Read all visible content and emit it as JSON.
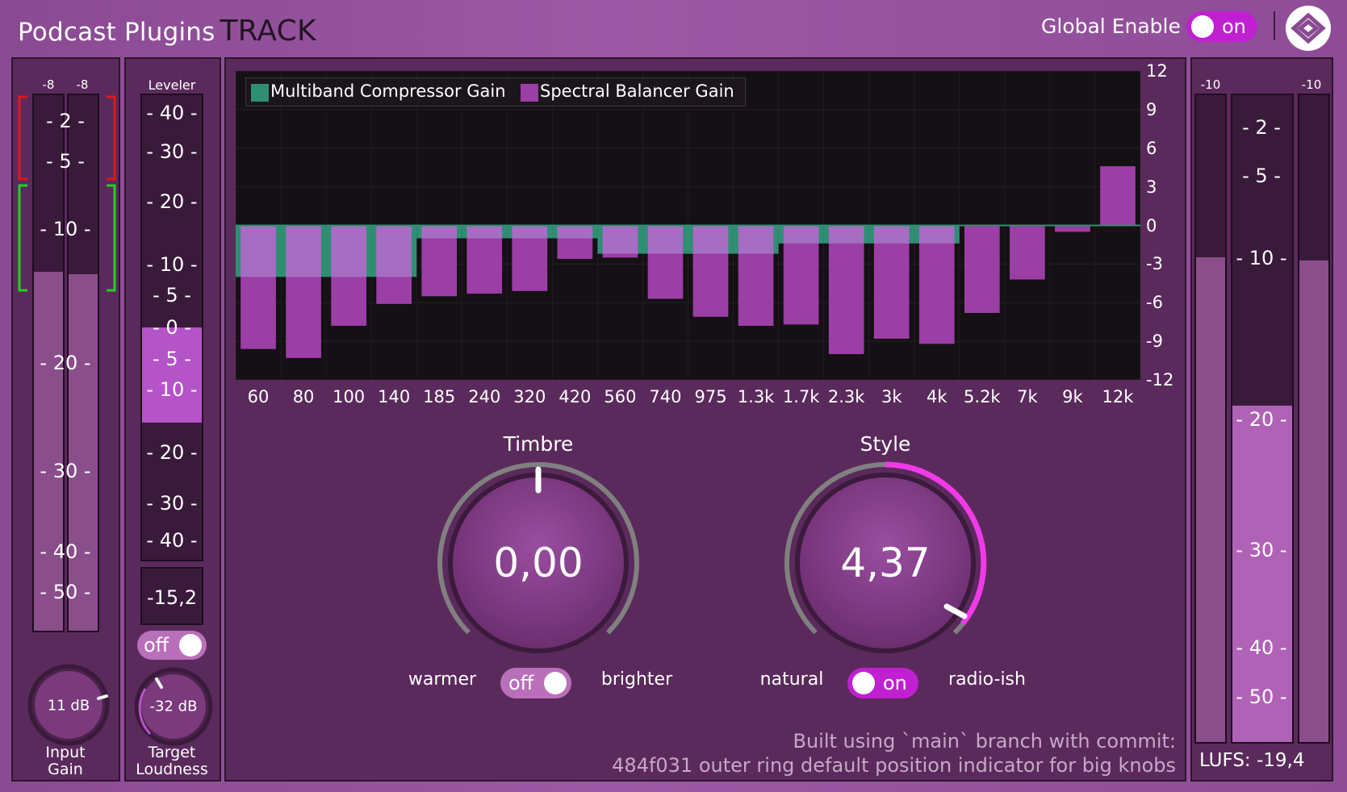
{
  "header": {
    "brand": "Podcast Plugins",
    "product": "TRACK",
    "global_enable_label": "Global Enable",
    "global_enable_state": "on"
  },
  "input_meter": {
    "peak_left": "-8",
    "peak_right": "-8",
    "scale": [
      "2",
      "5",
      "10",
      "20",
      "30",
      "40",
      "50"
    ],
    "knob_value": "11 dB",
    "knob_label_1": "Input",
    "knob_label_2": "Gain",
    "level_left": 0.67,
    "level_right": 0.665
  },
  "leveler": {
    "title": "Leveler",
    "scale_top": [
      "40",
      "30",
      "20",
      "10",
      "5"
    ],
    "zero": "0",
    "scale_bottom": [
      "5",
      "10",
      "20",
      "30",
      "40"
    ],
    "readout": "-15,2",
    "toggle_label": "off",
    "knob_value": "-32 dB",
    "knob_label_1": "Target",
    "knob_label_2": "Loudness"
  },
  "chart_data": {
    "type": "bar",
    "title": "",
    "legend": [
      "Multiband Compressor Gain",
      "Spectral Balancer Gain"
    ],
    "categories": [
      "60",
      "80",
      "100",
      "140",
      "185",
      "240",
      "320",
      "420",
      "560",
      "740",
      "975",
      "1.3k",
      "1.7k",
      "2.3k",
      "3k",
      "4k",
      "5.2k",
      "7k",
      "9k",
      "12k"
    ],
    "series": [
      {
        "name": "Multiband Compressor Gain",
        "values": [
          -4.0,
          -4.0,
          -4.0,
          -4.0,
          -1.0,
          -1.0,
          -1.0,
          -1.0,
          -2.2,
          -2.2,
          -2.2,
          -2.2,
          -1.4,
          -1.4,
          -1.4,
          -1.4,
          0,
          0,
          0,
          0
        ]
      },
      {
        "name": "Spectral Balancer Gain",
        "values": [
          -9.6,
          -10.3,
          -7.8,
          -6.1,
          -5.5,
          -5.3,
          -5.1,
          -2.6,
          -2.5,
          -5.7,
          -7.1,
          -7.8,
          -7.7,
          -10.0,
          -8.8,
          -9.2,
          -6.8,
          -4.2,
          -0.5,
          4.6
        ]
      }
    ],
    "ylim": [
      -12,
      12
    ],
    "yticks": [
      "12",
      "9",
      "6",
      "3",
      "0",
      "-3",
      "-6",
      "-9",
      "-12"
    ],
    "colors": {
      "mbc": "#2e8f73",
      "spectral": "#9b3ea5",
      "spectral_light": "#a877c7"
    }
  },
  "timbre": {
    "title": "Timbre",
    "value": "0,00",
    "left_label": "warmer",
    "right_label": "brighter",
    "toggle_label": "off"
  },
  "style": {
    "title": "Style",
    "value": "4,37",
    "left_label": "natural",
    "right_label": "radio-ish",
    "toggle_label": "on"
  },
  "build_info": {
    "line1": "Built using `main` branch with commit:",
    "line2": "484f031 outer ring default position indicator for big knobs"
  },
  "output_meter": {
    "peak_left": "-10",
    "peak_right": "-10",
    "scale": [
      "2",
      "5",
      "10",
      "20",
      "30",
      "40",
      "50"
    ],
    "lufs_label": "LUFS: -19,4",
    "level_left": 0.75,
    "level_right": 0.745,
    "loudness_level": 0.52
  }
}
